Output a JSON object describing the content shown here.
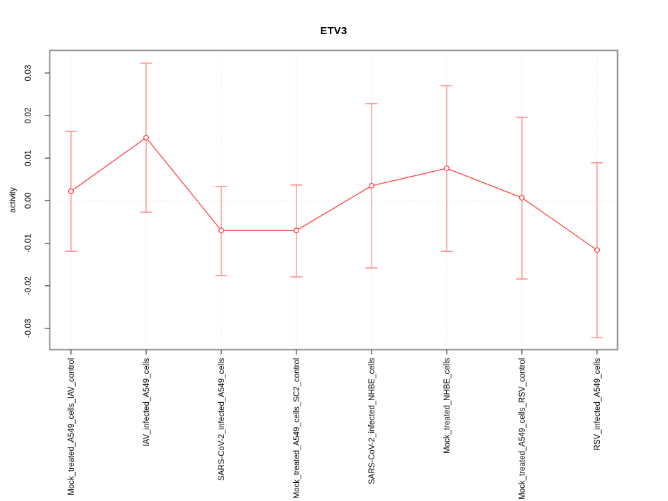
{
  "chart": {
    "title": "ETV3"
  },
  "chart_data": {
    "type": "line",
    "title": "ETV3",
    "xlabel": "",
    "ylabel": "activity",
    "categories": [
      "Mock_treated_A549_cells_IAV_control",
      "IAV_infected_A549_cells",
      "SARS-CoV-2_infected_A549_cells",
      "Mock_treated_A549_cells_SC2_control",
      "SARS-CoV-2_infected_NHBE_cells",
      "Mock_treated_NHBE_cells",
      "Mock_treated_A549_cells_RSV_control",
      "RSV_infected_A549_cells"
    ],
    "series": [
      {
        "name": "activity",
        "values": [
          0.0022,
          0.0148,
          -0.007,
          -0.007,
          0.0035,
          0.0076,
          0.0007,
          -0.0116
        ],
        "error_low": [
          -0.0119,
          -0.0027,
          -0.0176,
          -0.0179,
          -0.0158,
          -0.0119,
          -0.0184,
          -0.0322
        ],
        "error_high": [
          0.0163,
          0.0323,
          0.0033,
          0.0037,
          0.0228,
          0.027,
          0.0196,
          0.0089
        ]
      }
    ],
    "ylim": [
      -0.035,
      0.0353
    ],
    "yticks": {
      "values": [
        0.03,
        0.02,
        0.01,
        0.0,
        -0.01,
        -0.02,
        -0.03
      ],
      "labels": [
        "0.03",
        "0.02",
        "0.01",
        "0.00",
        "-0.01",
        "-0.02",
        "-0.03"
      ]
    },
    "grid": {
      "vertical_at_categories": true,
      "horizontal_at_zero": true,
      "style": "dotted"
    },
    "legend": "none",
    "marker": "open-circle",
    "colors": {
      "line": "#ff4040",
      "error_bar": "#ff8e8e",
      "grid": "#dcdcdc",
      "frame": "#949494",
      "tick": "#4a4a4a",
      "text": "#000000",
      "background": "#ffffff"
    }
  }
}
